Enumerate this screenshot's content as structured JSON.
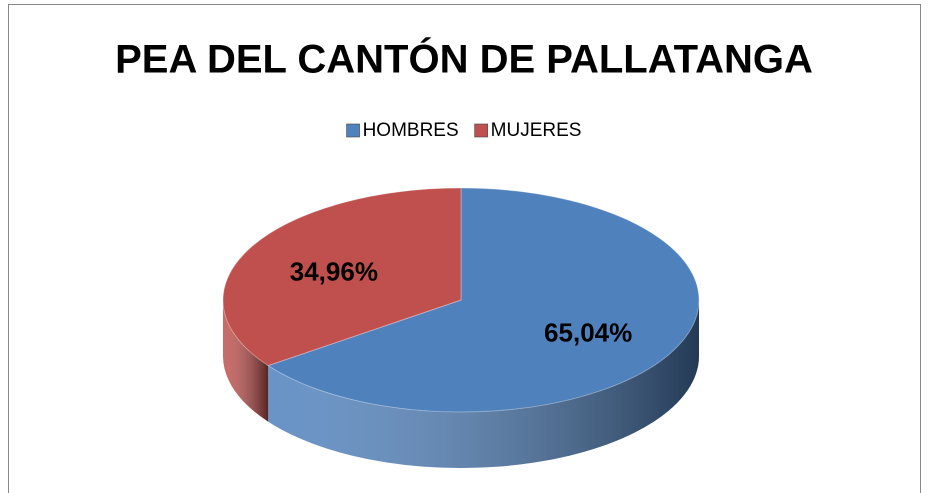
{
  "chart_data": {
    "type": "pie",
    "title": "PEA DEL CANTÓN DE PALLATANGA",
    "categories": [
      "HOMBRES",
      "MUJERES"
    ],
    "values": [
      65.04,
      34.96
    ],
    "value_labels": [
      "65,04%",
      "34,96%"
    ],
    "colors": [
      "#4f81bd",
      "#c0504d"
    ],
    "legend": "top"
  }
}
